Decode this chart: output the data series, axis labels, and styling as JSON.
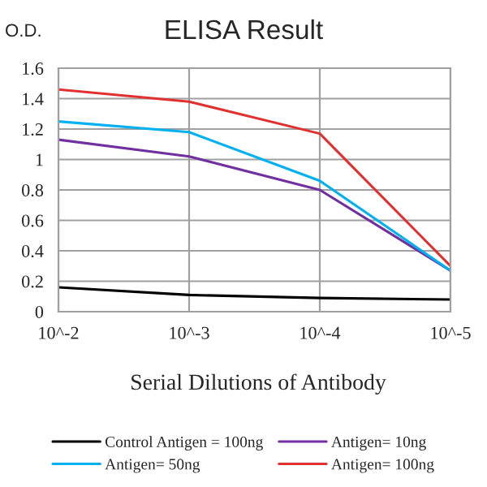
{
  "chart_data": {
    "type": "line",
    "title": "ELISA Result",
    "ylabel": "O.D.",
    "xlabel": "Serial Dilutions of Antibody",
    "categories": [
      "10^-2",
      "10^-3",
      "10^-4",
      "10^-5"
    ],
    "ylim": [
      0,
      1.6
    ],
    "yticks": [
      0,
      0.2,
      0.4,
      0.6,
      0.8,
      1,
      1.2,
      1.4,
      1.6
    ],
    "grid": true,
    "legend": "bottom",
    "line_style": "solid",
    "series": [
      {
        "name": "Control Antigen = 100ng",
        "color": "#000000",
        "values": [
          0.16,
          0.11,
          0.09,
          0.08
        ]
      },
      {
        "name": "Antigen= 10ng",
        "color": "#7030a0",
        "values": [
          1.13,
          1.02,
          0.8,
          0.27
        ]
      },
      {
        "name": "Antigen= 50ng",
        "color": "#00b0f0",
        "values": [
          1.25,
          1.18,
          0.86,
          0.27
        ]
      },
      {
        "name": "Antigen= 100ng",
        "color": "#e03030",
        "values": [
          1.46,
          1.38,
          1.17,
          0.3
        ]
      }
    ]
  }
}
